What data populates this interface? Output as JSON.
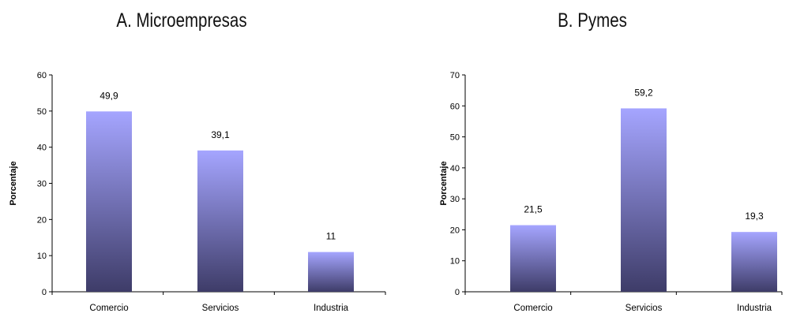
{
  "chart_data": [
    {
      "type": "bar",
      "title": "A. Microempresas",
      "ylabel": "Porcentaje",
      "xlabel": "",
      "categories": [
        "Comercio",
        "Servicios",
        "Industria"
      ],
      "values": [
        49.9,
        39.1,
        11
      ],
      "data_labels": [
        "49,9",
        "39,1",
        "11"
      ],
      "ylim": [
        0,
        60
      ],
      "yticks": [
        0,
        10,
        20,
        30,
        40,
        50,
        60
      ],
      "grid": false,
      "legend": "none",
      "bar_color_top": "#a5a5ff",
      "bar_color_bottom": "#3e3c68"
    },
    {
      "type": "bar",
      "title": "B. Pymes",
      "ylabel": "Porcentaje",
      "xlabel": "",
      "categories": [
        "Comercio",
        "Servicios",
        "Industria"
      ],
      "values": [
        21.5,
        59.2,
        19.3
      ],
      "data_labels": [
        "21,5",
        "59,2",
        "19,3"
      ],
      "ylim": [
        0,
        70
      ],
      "yticks": [
        0,
        10,
        20,
        30,
        40,
        50,
        60,
        70
      ],
      "grid": false,
      "legend": "none",
      "bar_color_top": "#a5a5ff",
      "bar_color_bottom": "#3e3c68"
    }
  ]
}
